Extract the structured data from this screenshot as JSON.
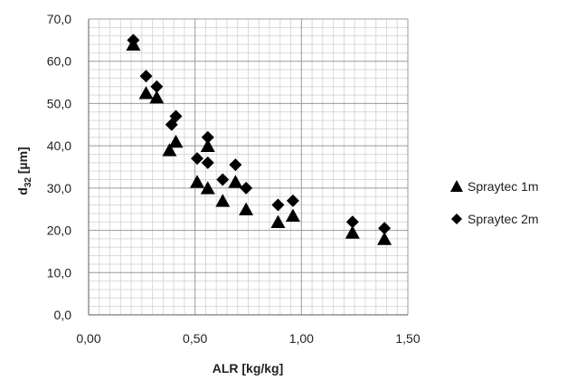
{
  "chart_data": {
    "type": "scatter",
    "xlabel": "ALR [kg/kg]",
    "ylabel_main": "d",
    "ylabel_sub": "32",
    "ylabel_unit": " [µm]",
    "xlim": [
      0,
      1.5
    ],
    "ylim": [
      0,
      70
    ],
    "x_ticks": [
      "0,00",
      "0,50",
      "1,00",
      "1,50"
    ],
    "y_ticks": [
      "0,0",
      "10,0",
      "20,0",
      "30,0",
      "40,0",
      "50,0",
      "60,0",
      "70,0"
    ],
    "grid": true,
    "legend_position": "right",
    "series": [
      {
        "name": "Spraytec 1m",
        "marker": "triangle",
        "color": "#000000",
        "points": [
          [
            0.21,
            64.0
          ],
          [
            0.27,
            52.5
          ],
          [
            0.32,
            51.5
          ],
          [
            0.38,
            39.0
          ],
          [
            0.41,
            41.0
          ],
          [
            0.51,
            31.5
          ],
          [
            0.56,
            30.0
          ],
          [
            0.56,
            40.0
          ],
          [
            0.63,
            27.0
          ],
          [
            0.69,
            31.5
          ],
          [
            0.74,
            25.0
          ],
          [
            0.89,
            22.0
          ],
          [
            0.96,
            23.5
          ],
          [
            1.24,
            19.5
          ],
          [
            1.39,
            18.0
          ]
        ]
      },
      {
        "name": "Spraytec 2m",
        "marker": "diamond",
        "color": "#000000",
        "points": [
          [
            0.21,
            65.0
          ],
          [
            0.27,
            56.5
          ],
          [
            0.32,
            54.0
          ],
          [
            0.39,
            45.0
          ],
          [
            0.41,
            47.0
          ],
          [
            0.51,
            37.0
          ],
          [
            0.56,
            36.0
          ],
          [
            0.56,
            42.0
          ],
          [
            0.63,
            32.0
          ],
          [
            0.69,
            35.5
          ],
          [
            0.74,
            30.0
          ],
          [
            0.89,
            26.0
          ],
          [
            0.96,
            27.0
          ],
          [
            1.24,
            22.0
          ],
          [
            1.39,
            20.5
          ]
        ]
      }
    ]
  }
}
